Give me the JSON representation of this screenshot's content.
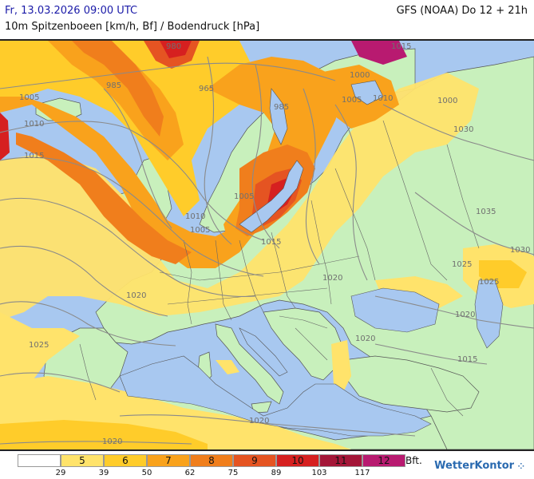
{
  "header": {
    "date": "Fr, 13.03.2026 09:00 UTC",
    "model": "GFS (NOAA) Do 12 + 21h",
    "subtitle": "10m Spitzenboeen [km/h, Bf] / Bodendruck [hPa]"
  },
  "colors": {
    "sea": "#a8c8f0",
    "land": "#c8f0bc",
    "bf5": "#ffe36b",
    "bf6": "#ffcc2a",
    "bf7": "#f9a21c",
    "bf8": "#f07e1c",
    "bf9": "#e55422",
    "bf10": "#d62020",
    "bf11": "#a41638",
    "bf12": "#b81a70"
  },
  "isobars": [
    "980",
    "985",
    "965",
    "1005",
    "1010",
    "1015",
    "1000",
    "1005",
    "1010",
    "1015",
    "1000",
    "985",
    "1030",
    "1035",
    "1030",
    "1025",
    "1025",
    "1020",
    "1025",
    "1020",
    "1020",
    "1020",
    "1015",
    "1020",
    "1020",
    "1015",
    "1005",
    "1010",
    "1005"
  ],
  "legend": {
    "classes": [
      {
        "bft": "",
        "color": "#ffffff"
      },
      {
        "bft": "5",
        "color": "#ffe36b"
      },
      {
        "bft": "6",
        "color": "#ffcc2a"
      },
      {
        "bft": "7",
        "color": "#f9a21c"
      },
      {
        "bft": "8",
        "color": "#f07e1c"
      },
      {
        "bft": "9",
        "color": "#e55422"
      },
      {
        "bft": "10",
        "color": "#d62020"
      },
      {
        "bft": "11",
        "color": "#a41638"
      },
      {
        "bft": "12",
        "color": "#b81a70"
      }
    ],
    "thresholds_kmh": [
      "29",
      "39",
      "50",
      "62",
      "75",
      "89",
      "103",
      "117"
    ],
    "unit": "Bft."
  },
  "brand": "WetterKontor"
}
